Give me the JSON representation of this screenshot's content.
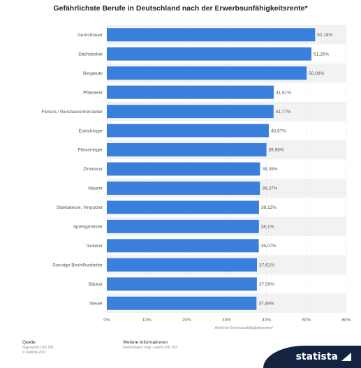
{
  "chart_data": {
    "type": "bar",
    "orientation": "horizontal",
    "title": "Gefährlichste Berufe in Deutschland nach der Erwerbsunfähigkeitsrente*",
    "xlabel": "Anteil der Erwerbsunfähigkeitsrenten*",
    "ylabel": "",
    "xlim": [
      0,
      60
    ],
    "xticks": [
      "0%",
      "10%",
      "20%",
      "30%",
      "40%",
      "50%",
      "60%"
    ],
    "categories": [
      "Gerüstbauer",
      "Dachdecker",
      "Bergleute",
      "Pflasterer",
      "Fleisch-/ Wurstwarenhersteller",
      "Estrichleger",
      "Fliesenleger",
      "Zimmerer",
      "Maurer",
      "Stukkateure, Verputzer",
      "Sprengmeister",
      "Isolierer",
      "Sonstige Beshilfsarbeiter",
      "Bäcker",
      "Steuer"
    ],
    "values": [
      52.18,
      51.26,
      50.06,
      41.81,
      41.77,
      40.57,
      39.98,
      38.39,
      38.37,
      38.12,
      38.1,
      38.07,
      37.61,
      37.59,
      37.49
    ],
    "value_labels": [
      "52,18%",
      "51,26%",
      "50,06%",
      "41,81%",
      "41,77%",
      "40,57%",
      "39,98%",
      "38,39%",
      "38,37%",
      "38,12%",
      "38,1%",
      "38,07%",
      "37,61%",
      "37,59%",
      "37,49%"
    ],
    "bar_color": "#3a7fdc",
    "grid": true,
    "legend": "none"
  },
  "footer": {
    "source_label": "Quelle",
    "source_lines": [
      "map-report (78) 783",
      "© Statista 2017"
    ],
    "info_label": "Weitere Informationen:",
    "info_text": "Deutschland; map - report (78) 783"
  },
  "brand": {
    "name": "statista"
  }
}
